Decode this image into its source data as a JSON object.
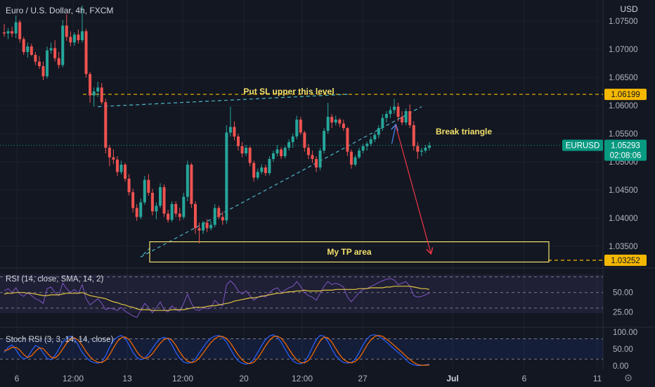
{
  "chart_data": {
    "type": "candlestick",
    "title": "Euro / U.S. Dollar, 4h, FXCM",
    "currency_label": "USD",
    "price_axis": {
      "range": [
        1.0315,
        1.0785
      ],
      "ticks": [
        "1.07500",
        "1.07000",
        "1.06500",
        "1.06000",
        "1.05500",
        "1.05000",
        "1.04500",
        "1.04000",
        "1.03500"
      ]
    },
    "x_ticks": [
      "6",
      "12:00",
      "13",
      "12:00",
      "20",
      "12:00",
      "27",
      "Jul",
      "6",
      "11"
    ],
    "symbol_badge": {
      "label": "EURUSD",
      "price": "1.05293",
      "countdown": "02:08:06",
      "color": "#089981"
    },
    "level_badges": [
      {
        "price": 1.06199,
        "label": "1.06199",
        "color": "#f5b800"
      },
      {
        "price": 1.03252,
        "label": "1.03252",
        "color": "#f5b800"
      }
    ],
    "annotations": {
      "sl_text": "Put SL upper this level",
      "break_text": "Break triangle",
      "tp_text": "My TP area"
    },
    "tp_box": {
      "top_price": 1.0358,
      "bottom_price": 1.0322
    },
    "triangle": {
      "upper": {
        "from": {
          "idx": 24,
          "price": 1.0598
        },
        "to": {
          "idx": 88,
          "price": 1.062
        }
      },
      "lower": {
        "from": {
          "idx": 35,
          "price": 1.0331
        },
        "to": {
          "idx": 107,
          "price": 1.0598
        }
      }
    },
    "projection": {
      "up": {
        "from": {
          "idx": 99,
          "price": 1.0532
        },
        "to": {
          "idx": 100,
          "price": 1.0565
        }
      },
      "down": {
        "from": {
          "idx": 100,
          "price": 1.0565
        },
        "to": {
          "idx": 109,
          "price": 1.0338
        }
      }
    },
    "ohlc": [
      [
        1.073,
        1.0745,
        1.0722,
        1.0728
      ],
      [
        1.0728,
        1.0738,
        1.0718,
        1.0732
      ],
      [
        1.0732,
        1.074,
        1.0722,
        1.0728
      ],
      [
        1.0728,
        1.076,
        1.072,
        1.0748
      ],
      [
        1.0748,
        1.0752,
        1.0712,
        1.0718
      ],
      [
        1.0718,
        1.0722,
        1.069,
        1.0695
      ],
      [
        1.0695,
        1.0712,
        1.0685,
        1.0705
      ],
      [
        1.0705,
        1.071,
        1.0688,
        1.069
      ],
      [
        1.069,
        1.0695,
        1.0672,
        1.0678
      ],
      [
        1.0678,
        1.0688,
        1.0665,
        1.067
      ],
      [
        1.067,
        1.0678,
        1.0645,
        1.0652
      ],
      [
        1.0652,
        1.0705,
        1.0648,
        1.0698
      ],
      [
        1.0698,
        1.0712,
        1.0692,
        1.0702
      ],
      [
        1.0702,
        1.0716,
        1.0678,
        1.0684
      ],
      [
        1.0684,
        1.0695,
        1.0666,
        1.0672
      ],
      [
        1.0672,
        1.0752,
        1.0668,
        1.0742
      ],
      [
        1.0742,
        1.0762,
        1.0715,
        1.0722
      ],
      [
        1.0722,
        1.0732,
        1.0705,
        1.0712
      ],
      [
        1.0712,
        1.073,
        1.0706,
        1.0726
      ],
      [
        1.0726,
        1.0735,
        1.071,
        1.0716
      ],
      [
        1.0716,
        1.0778,
        1.0712,
        1.0732
      ],
      [
        1.0732,
        1.0736,
        1.065,
        1.0656
      ],
      [
        1.0656,
        1.066,
        1.0605,
        1.0618
      ],
      [
        1.0618,
        1.0632,
        1.0598,
        1.0625
      ],
      [
        1.0625,
        1.0642,
        1.0615,
        1.0632
      ],
      [
        1.0632,
        1.064,
        1.0602,
        1.0606
      ],
      [
        1.0606,
        1.0612,
        1.0515,
        1.0525
      ],
      [
        1.0525,
        1.053,
        1.0492,
        1.0508
      ],
      [
        1.0508,
        1.0522,
        1.0496,
        1.0504
      ],
      [
        1.0504,
        1.051,
        1.0475,
        1.0482
      ],
      [
        1.0482,
        1.0502,
        1.0478,
        1.0495
      ],
      [
        1.0495,
        1.0498,
        1.0465,
        1.047
      ],
      [
        1.047,
        1.0478,
        1.044,
        1.0446
      ],
      [
        1.0446,
        1.0452,
        1.041,
        1.0418
      ],
      [
        1.0418,
        1.0425,
        1.0395,
        1.0402
      ],
      [
        1.0402,
        1.0435,
        1.0398,
        1.0428
      ],
      [
        1.0428,
        1.0475,
        1.0424,
        1.0468
      ],
      [
        1.0468,
        1.0478,
        1.044,
        1.0445
      ],
      [
        1.0445,
        1.0452,
        1.0405,
        1.0412
      ],
      [
        1.0412,
        1.0428,
        1.0398,
        1.0422
      ],
      [
        1.0422,
        1.0462,
        1.0418,
        1.0455
      ],
      [
        1.0455,
        1.046,
        1.0402,
        1.0408
      ],
      [
        1.0408,
        1.0415,
        1.0392,
        1.0397
      ],
      [
        1.0397,
        1.043,
        1.0393,
        1.0425
      ],
      [
        1.0425,
        1.043,
        1.0402,
        1.0408
      ],
      [
        1.0408,
        1.0418,
        1.0395,
        1.0402
      ],
      [
        1.0402,
        1.0445,
        1.0398,
        1.0438
      ],
      [
        1.0438,
        1.0502,
        1.043,
        1.0495
      ],
      [
        1.0495,
        1.0498,
        1.0418,
        1.0425
      ],
      [
        1.0425,
        1.043,
        1.0372,
        1.0382
      ],
      [
        1.0382,
        1.0392,
        1.0355,
        1.0378
      ],
      [
        1.0378,
        1.0395,
        1.0372,
        1.0392
      ],
      [
        1.0392,
        1.0398,
        1.0375,
        1.0382
      ],
      [
        1.0382,
        1.0395,
        1.0378,
        1.0388
      ],
      [
        1.0388,
        1.0425,
        1.0384,
        1.0418
      ],
      [
        1.0418,
        1.0422,
        1.0398,
        1.0402
      ],
      [
        1.0402,
        1.0412,
        1.0388,
        1.0396
      ],
      [
        1.0396,
        1.0565,
        1.039,
        1.0552
      ],
      [
        1.0552,
        1.0598,
        1.0545,
        1.0562
      ],
      [
        1.0562,
        1.0572,
        1.0538,
        1.0545
      ],
      [
        1.0545,
        1.055,
        1.052,
        1.0528
      ],
      [
        1.0528,
        1.0535,
        1.0508,
        1.0515
      ],
      [
        1.0515,
        1.053,
        1.051,
        1.0525
      ],
      [
        1.0525,
        1.0528,
        1.0492,
        1.0498
      ],
      [
        1.0498,
        1.0502,
        1.0465,
        1.0472
      ],
      [
        1.0472,
        1.0488,
        1.0468,
        1.0482
      ],
      [
        1.0482,
        1.0496,
        1.0478,
        1.049
      ],
      [
        1.049,
        1.0495,
        1.0475,
        1.048
      ],
      [
        1.048,
        1.051,
        1.0476,
        1.0505
      ],
      [
        1.0505,
        1.052,
        1.05,
        1.0515
      ],
      [
        1.0515,
        1.053,
        1.051,
        1.0522
      ],
      [
        1.0522,
        1.0526,
        1.0505,
        1.051
      ],
      [
        1.051,
        1.0528,
        1.0506,
        1.0525
      ],
      [
        1.0525,
        1.054,
        1.052,
        1.0535
      ],
      [
        1.0535,
        1.055,
        1.0525,
        1.0545
      ],
      [
        1.0545,
        1.0582,
        1.054,
        1.0575
      ],
      [
        1.0575,
        1.058,
        1.0548,
        1.0552
      ],
      [
        1.0552,
        1.0555,
        1.0518,
        1.0525
      ],
      [
        1.0525,
        1.0532,
        1.0505,
        1.0512
      ],
      [
        1.0512,
        1.052,
        1.0498,
        1.0505
      ],
      [
        1.0505,
        1.051,
        1.0482,
        1.049
      ],
      [
        1.049,
        1.0525,
        1.0485,
        1.052
      ],
      [
        1.052,
        1.056,
        1.0515,
        1.0555
      ],
      [
        1.0555,
        1.0605,
        1.055,
        1.058
      ],
      [
        1.058,
        1.0585,
        1.056,
        1.057
      ],
      [
        1.057,
        1.0582,
        1.0565,
        1.0575
      ],
      [
        1.0575,
        1.0578,
        1.0562,
        1.0568
      ],
      [
        1.0568,
        1.0575,
        1.0555,
        1.056
      ],
      [
        1.056,
        1.0562,
        1.051,
        1.0518
      ],
      [
        1.0518,
        1.0522,
        1.0488,
        1.0495
      ],
      [
        1.0495,
        1.0512,
        1.0492,
        1.0508
      ],
      [
        1.0508,
        1.0525,
        1.0505,
        1.052
      ],
      [
        1.052,
        1.0532,
        1.0515,
        1.0528
      ],
      [
        1.0528,
        1.0536,
        1.052,
        1.0532
      ],
      [
        1.0532,
        1.0545,
        1.0528,
        1.054
      ],
      [
        1.054,
        1.0552,
        1.0535,
        1.0548
      ],
      [
        1.0548,
        1.0565,
        1.0542,
        1.056
      ],
      [
        1.056,
        1.0585,
        1.0555,
        1.0578
      ],
      [
        1.0578,
        1.059,
        1.057,
        1.0585
      ],
      [
        1.0585,
        1.0598,
        1.0578,
        1.0592
      ],
      [
        1.0592,
        1.0612,
        1.0585,
        1.0598
      ],
      [
        1.0598,
        1.0605,
        1.0572,
        1.058
      ],
      [
        1.058,
        1.059,
        1.0565,
        1.057
      ],
      [
        1.057,
        1.0595,
        1.0565,
        1.059
      ],
      [
        1.059,
        1.0602,
        1.056,
        1.0565
      ],
      [
        1.0565,
        1.0572,
        1.052,
        1.0528
      ],
      [
        1.0528,
        1.0535,
        1.0505,
        1.0518
      ],
      [
        1.0518,
        1.0525,
        1.051,
        1.052
      ],
      [
        1.052,
        1.053,
        1.0516,
        1.0525
      ],
      [
        1.0525,
        1.0535,
        1.052,
        1.0529
      ]
    ],
    "rsi": {
      "label": "RSI (14, close, SMA, 14, 2)",
      "range": [
        10,
        75
      ],
      "ticks": [
        "50.00",
        "25.00"
      ],
      "bands": [
        70,
        50,
        30
      ],
      "rsi_values": [
        52,
        55,
        50,
        56,
        48,
        45,
        50,
        46,
        42,
        40,
        36,
        55,
        57,
        50,
        46,
        62,
        55,
        50,
        54,
        49,
        60,
        42,
        34,
        38,
        42,
        36,
        28,
        30,
        29,
        27,
        31,
        26,
        23,
        20,
        18,
        27,
        36,
        31,
        24,
        30,
        38,
        28,
        25,
        33,
        28,
        26,
        36,
        48,
        36,
        28,
        27,
        31,
        29,
        30,
        40,
        35,
        33,
        60,
        65,
        60,
        52,
        48,
        52,
        46,
        40,
        44,
        46,
        44,
        50,
        54,
        56,
        50,
        53,
        56,
        58,
        64,
        58,
        50,
        46,
        44,
        40,
        49,
        58,
        64,
        60,
        62,
        60,
        57,
        44,
        38,
        44,
        50,
        54,
        55,
        58,
        60,
        63,
        65,
        67,
        68,
        66,
        60,
        62,
        64,
        58,
        46,
        44,
        45,
        47,
        49
      ],
      "ma_values": [
        48,
        49,
        49,
        50,
        50,
        50,
        49,
        49,
        48,
        47,
        46,
        46,
        47,
        47,
        47,
        48,
        49,
        49,
        49,
        49,
        50,
        48,
        46,
        45,
        44,
        43,
        42,
        40,
        38,
        37,
        35,
        34,
        32,
        31,
        29,
        28,
        28,
        28,
        27,
        27,
        27,
        27,
        27,
        28,
        28,
        28,
        28,
        29,
        30,
        31,
        31,
        31,
        32,
        33,
        33,
        34,
        35,
        36,
        37,
        39,
        40,
        41,
        42,
        43,
        43,
        44,
        45,
        46,
        47,
        48,
        49,
        49,
        50,
        51,
        51,
        52,
        52,
        53,
        52,
        52,
        52,
        52,
        53,
        53,
        53,
        54,
        54,
        54,
        54,
        54,
        54,
        55,
        55,
        55,
        56,
        56,
        56,
        56,
        57,
        57,
        58,
        58,
        58,
        58,
        58,
        57,
        56,
        55,
        55,
        54
      ]
    },
    "stoch": {
      "label": "Stoch RSI (3, 3, 14, 14, close)",
      "range": [
        -2,
        106
      ],
      "ticks": [
        "100.00",
        "50.00",
        "0.00"
      ],
      "bands": [
        80,
        20
      ],
      "k_values": [
        40,
        55,
        62,
        48,
        30,
        20,
        25,
        45,
        60,
        55,
        38,
        22,
        18,
        30,
        50,
        70,
        82,
        88,
        80,
        60,
        40,
        25,
        15,
        10,
        8,
        12,
        30,
        55,
        75,
        85,
        90,
        82,
        62,
        40,
        25,
        18,
        22,
        35,
        52,
        68,
        80,
        85,
        80,
        62,
        40,
        22,
        12,
        8,
        10,
        20,
        38,
        55,
        70,
        82,
        88,
        90,
        84,
        70,
        50,
        30,
        15,
        8,
        5,
        8,
        20,
        40,
        60,
        78,
        88,
        92,
        85,
        70,
        50,
        30,
        15,
        8,
        6,
        12,
        30,
        55,
        78,
        90,
        88,
        72,
        50,
        30,
        18,
        10,
        8,
        10,
        20,
        40,
        62,
        80,
        90,
        92,
        88,
        80,
        70,
        60,
        50,
        40,
        30,
        18,
        8,
        3,
        1,
        2,
        3,
        5
      ],
      "d_values": [
        45,
        48,
        55,
        55,
        47,
        33,
        25,
        30,
        43,
        53,
        51,
        38,
        26,
        23,
        33,
        50,
        67,
        80,
        83,
        76,
        60,
        42,
        27,
        17,
        11,
        10,
        17,
        32,
        53,
        72,
        83,
        86,
        78,
        61,
        42,
        28,
        22,
        25,
        36,
        52,
        67,
        78,
        82,
        76,
        61,
        41,
        25,
        14,
        10,
        13,
        23,
        38,
        54,
        69,
        80,
        87,
        87,
        81,
        68,
        50,
        32,
        18,
        9,
        7,
        11,
        23,
        40,
        59,
        75,
        86,
        88,
        82,
        68,
        50,
        32,
        18,
        10,
        9,
        16,
        32,
        54,
        74,
        85,
        83,
        70,
        51,
        33,
        19,
        12,
        9,
        13,
        23,
        41,
        61,
        77,
        87,
        90,
        87,
        79,
        70,
        60,
        50,
        40,
        29,
        19,
        10,
        4,
        2,
        2,
        3
      ]
    }
  }
}
